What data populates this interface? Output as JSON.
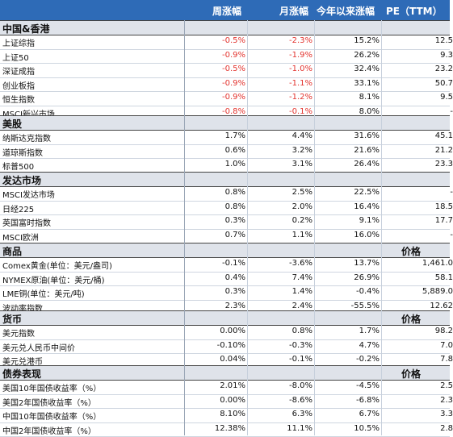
{
  "header": {
    "week": "周涨幅",
    "month": "月涨幅",
    "ytd": "今年以来涨幅",
    "pe": "PE（TTM）"
  },
  "sections": [
    {
      "title": "中国&香港",
      "extra": "",
      "rows": [
        {
          "name": "上证综指",
          "week": "-0.5%",
          "month": "-2.3%",
          "ytd": "15.2%",
          "pe": "12.5"
        },
        {
          "name": "上证50",
          "week": "-0.9%",
          "month": "-1.9%",
          "ytd": "26.2%",
          "pe": "9.3"
        },
        {
          "name": "深证成指",
          "week": "-0.5%",
          "month": "-1.0%",
          "ytd": "32.4%",
          "pe": "23.2"
        },
        {
          "name": "创业板指",
          "week": "-0.9%",
          "month": "-1.1%",
          "ytd": "33.1%",
          "pe": "50.7"
        },
        {
          "name": "恒生指数",
          "week": "-0.9%",
          "month": "-1.2%",
          "ytd": "8.1%",
          "pe": "9.5"
        },
        {
          "name": "MSCI新兴市场",
          "week": "-0.8%",
          "month": "-0.1%",
          "ytd": "8.0%",
          "pe": "-"
        }
      ]
    },
    {
      "title": "美股",
      "extra": "",
      "rows": [
        {
          "name": "纳斯达克指数",
          "week": "1.7%",
          "month": "4.4%",
          "ytd": "31.6%",
          "pe": "45.1"
        },
        {
          "name": "道琼斯指数",
          "week": "0.6%",
          "month": "3.2%",
          "ytd": "21.6%",
          "pe": "21.2"
        },
        {
          "name": "标普500",
          "week": "1.0%",
          "month": "3.1%",
          "ytd": "26.4%",
          "pe": "23.3"
        }
      ]
    },
    {
      "title": "发达市场",
      "extra": "",
      "rows": [
        {
          "name": "MSCI发达市场",
          "week": "0.8%",
          "month": "2.5%",
          "ytd": "22.5%",
          "pe": "-"
        },
        {
          "name": "日经225",
          "week": "0.8%",
          "month": "2.0%",
          "ytd": "16.4%",
          "pe": "18.5"
        },
        {
          "name": "英国富时指数",
          "week": "0.3%",
          "month": "0.2%",
          "ytd": "9.1%",
          "pe": "17.7"
        },
        {
          "name": "MSCI欧洲",
          "week": "0.7%",
          "month": "1.1%",
          "ytd": "16.0%",
          "pe": "-"
        }
      ]
    },
    {
      "title": "商品",
      "extra": "价格",
      "rows": [
        {
          "name": "Comex黄金(单位：美元/盎司)",
          "week": "-0.1%",
          "month": "-3.6%",
          "ytd": "13.7%",
          "pe": "1,461.0"
        },
        {
          "name": "NYMEX原油(单位：美元/桶)",
          "week": "0.4%",
          "month": "7.4%",
          "ytd": "26.9%",
          "pe": "58.1"
        },
        {
          "name": "LME铜(单位：美元/吨)",
          "week": "0.3%",
          "month": "1.4%",
          "ytd": "-0.4%",
          "pe": "5,889.0"
        },
        {
          "name": "波动率指数",
          "week": "2.3%",
          "month": "2.4%",
          "ytd": "-55.5%",
          "pe": "12.62"
        }
      ]
    },
    {
      "title": "货币",
      "extra": "价格",
      "rows": [
        {
          "name": "美元指数",
          "week": "0.00%",
          "month": "0.8%",
          "ytd": "1.7%",
          "pe": "98.2"
        },
        {
          "name": "美元兑人民币中间价",
          "week": "-0.10%",
          "month": "-0.3%",
          "ytd": "4.7%",
          "pe": "7.0"
        },
        {
          "name": "美元兑港币",
          "week": "0.04%",
          "month": "-0.1%",
          "ytd": "-0.2%",
          "pe": "7.8"
        }
      ]
    },
    {
      "title": "债券表现",
      "extra": "价格",
      "rows": [
        {
          "name": "美国10年国债收益率（%）",
          "week": "2.01%",
          "month": "-8.0%",
          "ytd": "-4.5%",
          "pe": "2.5"
        },
        {
          "name": "美国2年国债收益率（%）",
          "week": "0.00%",
          "month": "-8.6%",
          "ytd": "-6.8%",
          "pe": "2.3"
        },
        {
          "name": "中国10年国债收益率（%）",
          "week": "8.10%",
          "month": "6.3%",
          "ytd": "6.7%",
          "pe": "3.3"
        },
        {
          "name": "中国2年国债收益率（%）",
          "week": "12.38%",
          "month": "11.1%",
          "ytd": "10.5%",
          "pe": "2.8"
        }
      ]
    }
  ],
  "colors": {
    "header_bg": "#2e6bb7",
    "section_bg": "#dfe3ea",
    "negative": "#e3342f"
  }
}
